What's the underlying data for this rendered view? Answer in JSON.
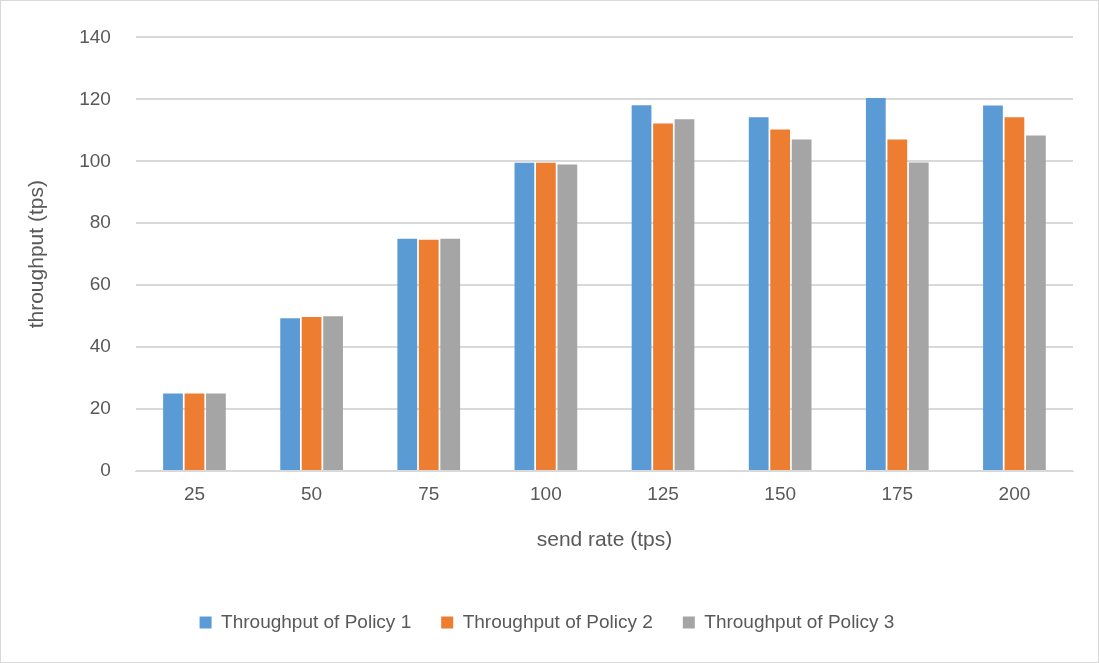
{
  "chart_data": {
    "type": "bar",
    "xlabel": "send rate (tps)",
    "ylabel": "throughput (tps)",
    "categories": [
      "25",
      "50",
      "75",
      "100",
      "125",
      "150",
      "175",
      "200"
    ],
    "series": [
      {
        "name": "Throughput of Policy 1",
        "color": "#5b9bd5",
        "values": [
          25,
          49.3,
          75,
          99.5,
          118.1,
          114.2,
          120.4,
          118
        ]
      },
      {
        "name": "Throughput of Policy 2",
        "color": "#ed7d31",
        "values": [
          25,
          49.7,
          74.7,
          99.5,
          112.2,
          110.3,
          107,
          114.2
        ]
      },
      {
        "name": "Throughput of Policy 3",
        "color": "#a5a5a5",
        "values": [
          25,
          50,
          75,
          99,
          113.6,
          107,
          99.6,
          108.3
        ]
      }
    ],
    "ylim": [
      0,
      140
    ],
    "yticks": [
      0,
      20,
      40,
      60,
      80,
      100,
      120,
      140
    ],
    "grid": "y",
    "legend": "bottom"
  }
}
